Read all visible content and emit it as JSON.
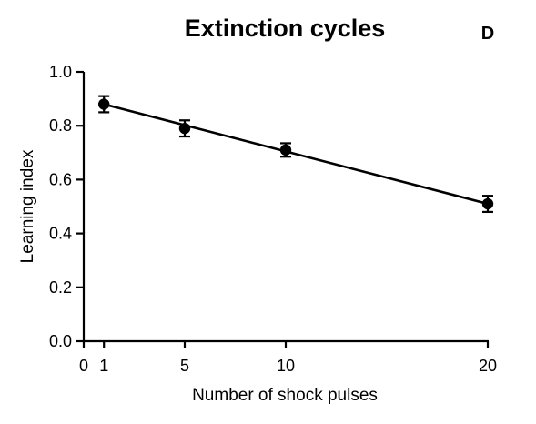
{
  "panel_label": "D",
  "chart_data": {
    "type": "line",
    "title": "Extinction cycles",
    "xlabel": "Number of shock pulses",
    "ylabel": "Learning index",
    "xlim": [
      0,
      20
    ],
    "ylim": [
      0,
      1.0
    ],
    "x_ticks": [
      "0",
      "1",
      "5",
      "10",
      "20"
    ],
    "y_ticks": [
      "0.0",
      "0.2",
      "0.4",
      "0.6",
      "0.8",
      "1.0"
    ],
    "grid": false,
    "series": [
      {
        "x": [
          1,
          5,
          10,
          20
        ],
        "values": [
          0.88,
          0.79,
          0.71,
          0.51
        ],
        "error": [
          0.03,
          0.03,
          0.025,
          0.03
        ]
      }
    ],
    "trendline": {
      "type": "linear fit",
      "x_range": [
        1,
        20
      ],
      "y_at_start": 0.88,
      "y_at_end": 0.51
    },
    "colors": {
      "line": "#000000",
      "marker": "#000000"
    }
  }
}
